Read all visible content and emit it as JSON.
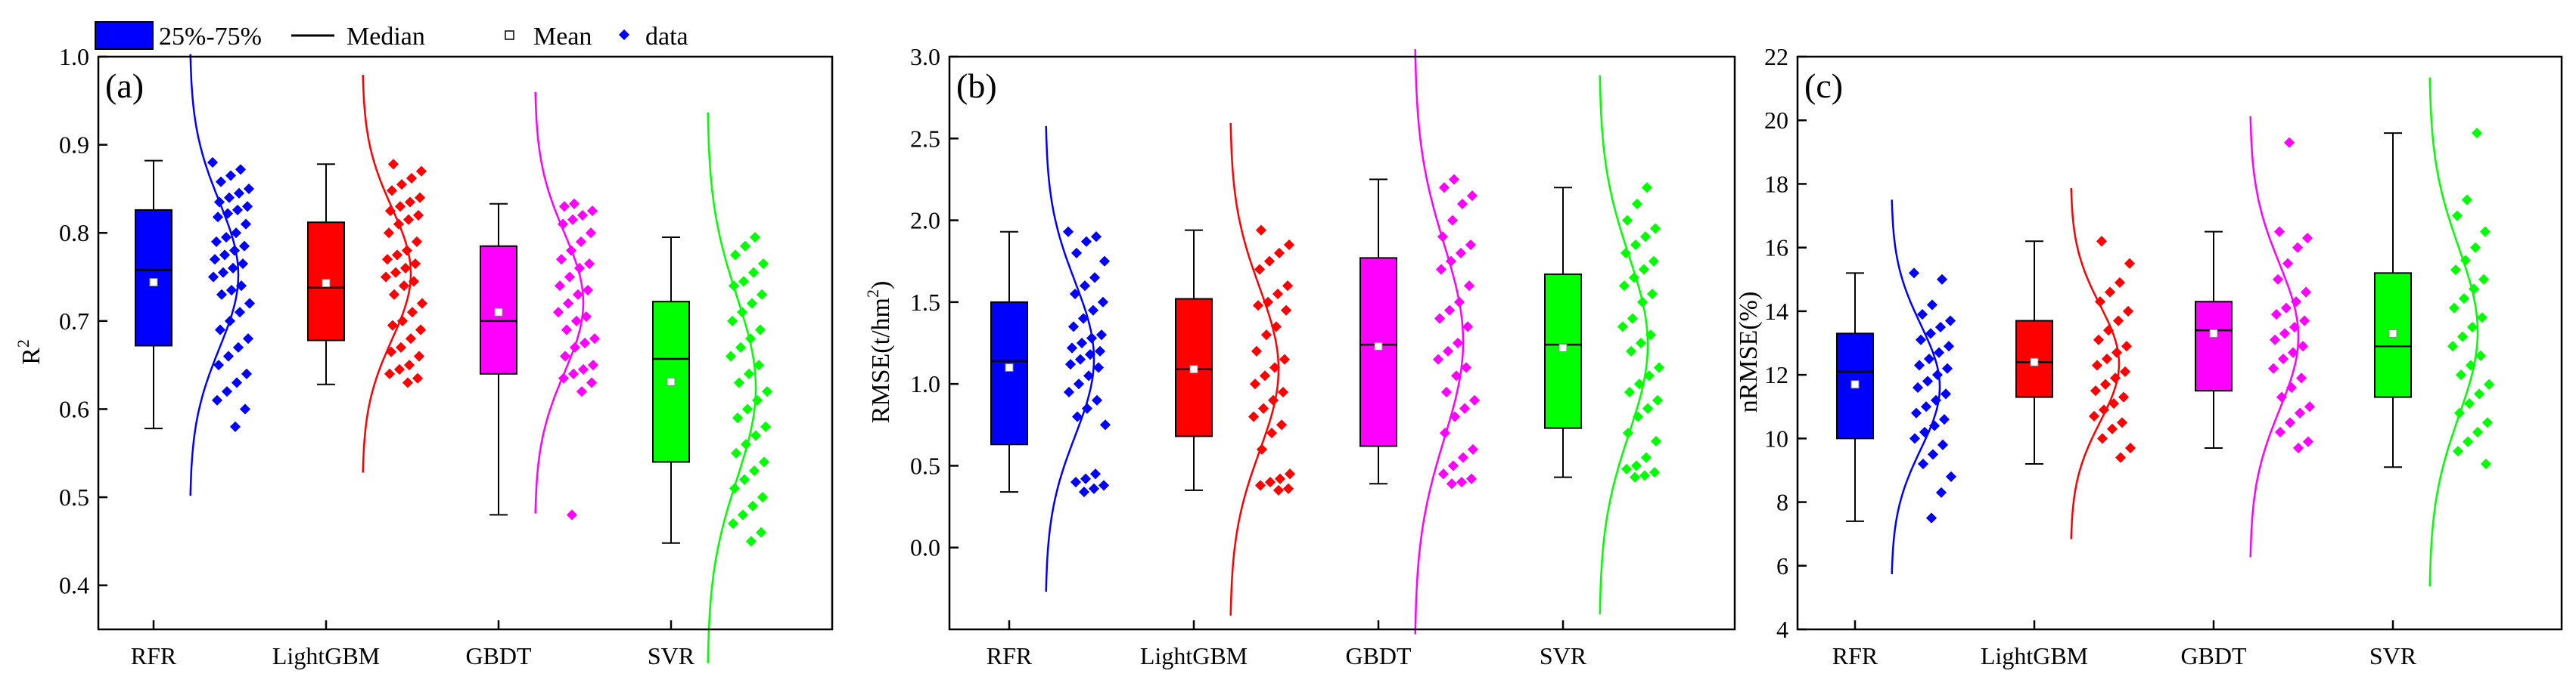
{
  "legend": {
    "box_label": "25%-75%",
    "median_label": "Median",
    "mean_label": "Mean",
    "data_label": "data"
  },
  "colors": {
    "RFR": "#0000ff",
    "LightGBM": "#ff0000",
    "GBDT": "#ff00ff",
    "SVR": "#00ff00",
    "frame": "#000000"
  },
  "chart_data": [
    {
      "type": "box",
      "panel_label": "(a)",
      "ylabel": "R",
      "ylabel_sup": "2",
      "ylim": [
        0.35,
        1.0
      ],
      "yticks": [
        "0.4",
        "0.5",
        "0.6",
        "0.7",
        "0.8",
        "0.9",
        "1.0"
      ],
      "ytick_values": [
        0.4,
        0.5,
        0.6,
        0.7,
        0.8,
        0.9,
        1.0
      ],
      "categories": [
        "RFR",
        "LightGBM",
        "GBDT",
        "SVR"
      ],
      "boxes": [
        {
          "name": "RFR",
          "whisker_low": 0.578,
          "q1": 0.672,
          "median": 0.758,
          "q3": 0.826,
          "whisker_high": 0.882,
          "mean": 0.744,
          "data": [
            0.88,
            0.872,
            0.865,
            0.858,
            0.85,
            0.845,
            0.84,
            0.835,
            0.83,
            0.826,
            0.822,
            0.818,
            0.81,
            0.8,
            0.795,
            0.79,
            0.785,
            0.78,
            0.775,
            0.77,
            0.765,
            0.76,
            0.755,
            0.75,
            0.74,
            0.735,
            0.73,
            0.72,
            0.71,
            0.7,
            0.69,
            0.68,
            0.67,
            0.66,
            0.65,
            0.64,
            0.63,
            0.62,
            0.61,
            0.6,
            0.58
          ]
        },
        {
          "name": "LightGBM",
          "whisker_low": 0.628,
          "q1": 0.678,
          "median": 0.738,
          "q3": 0.812,
          "whisker_high": 0.878,
          "mean": 0.743,
          "data": [
            0.878,
            0.87,
            0.862,
            0.855,
            0.848,
            0.84,
            0.835,
            0.83,
            0.825,
            0.82,
            0.815,
            0.81,
            0.8,
            0.79,
            0.78,
            0.775,
            0.77,
            0.765,
            0.76,
            0.755,
            0.75,
            0.745,
            0.74,
            0.73,
            0.72,
            0.71,
            0.7,
            0.695,
            0.69,
            0.68,
            0.67,
            0.665,
            0.66,
            0.65,
            0.645,
            0.64,
            0.635,
            0.63
          ]
        },
        {
          "name": "GBDT",
          "whisker_low": 0.48,
          "q1": 0.64,
          "median": 0.7,
          "q3": 0.785,
          "whisker_high": 0.833,
          "mean": 0.71,
          "data": [
            0.833,
            0.83,
            0.825,
            0.82,
            0.815,
            0.81,
            0.8,
            0.79,
            0.78,
            0.77,
            0.765,
            0.76,
            0.75,
            0.74,
            0.735,
            0.73,
            0.72,
            0.71,
            0.705,
            0.7,
            0.69,
            0.68,
            0.675,
            0.67,
            0.66,
            0.65,
            0.645,
            0.64,
            0.635,
            0.63,
            0.62,
            0.48
          ]
        },
        {
          "name": "SVR",
          "whisker_low": 0.448,
          "q1": 0.54,
          "median": 0.657,
          "q3": 0.722,
          "whisker_high": 0.795,
          "mean": 0.631,
          "data": [
            0.795,
            0.785,
            0.775,
            0.765,
            0.755,
            0.745,
            0.74,
            0.73,
            0.72,
            0.71,
            0.7,
            0.69,
            0.68,
            0.67,
            0.66,
            0.65,
            0.64,
            0.63,
            0.62,
            0.61,
            0.6,
            0.59,
            0.58,
            0.57,
            0.56,
            0.55,
            0.54,
            0.53,
            0.52,
            0.51,
            0.5,
            0.49,
            0.48,
            0.47,
            0.46,
            0.45
          ]
        }
      ]
    },
    {
      "type": "box",
      "panel_label": "(b)",
      "ylabel": "RMSE(t/hm",
      "ylabel_sup": "2",
      "ylabel_tail": ")",
      "ylim": [
        -0.5,
        3.0
      ],
      "yticks": [
        "0.0",
        "0.5",
        "1.0",
        "1.5",
        "2.0",
        "2.5",
        "3.0"
      ],
      "ytick_values": [
        0.0,
        0.5,
        1.0,
        1.5,
        2.0,
        2.5,
        3.0
      ],
      "categories": [
        "RFR",
        "LightGBM",
        "GBDT",
        "SVR"
      ],
      "boxes": [
        {
          "name": "RFR",
          "whisker_low": 0.34,
          "q1": 0.63,
          "median": 1.14,
          "q3": 1.5,
          "whisker_high": 1.93,
          "mean": 1.1,
          "data": [
            1.93,
            1.9,
            1.87,
            1.8,
            1.75,
            1.65,
            1.6,
            1.55,
            1.5,
            1.45,
            1.4,
            1.35,
            1.3,
            1.28,
            1.25,
            1.22,
            1.2,
            1.18,
            1.15,
            1.12,
            1.1,
            1.05,
            1.0,
            0.95,
            0.9,
            0.85,
            0.8,
            0.75,
            0.45,
            0.42,
            0.4,
            0.38,
            0.36,
            0.34
          ]
        },
        {
          "name": "LightGBM",
          "whisker_low": 0.35,
          "q1": 0.68,
          "median": 1.09,
          "q3": 1.52,
          "whisker_high": 1.94,
          "mean": 1.09,
          "data": [
            1.94,
            1.85,
            1.8,
            1.75,
            1.7,
            1.6,
            1.55,
            1.5,
            1.48,
            1.45,
            1.35,
            1.3,
            1.2,
            1.15,
            1.1,
            1.05,
            1.0,
            0.95,
            0.9,
            0.85,
            0.8,
            0.75,
            0.7,
            0.6,
            0.45,
            0.42,
            0.4,
            0.38,
            0.36,
            0.35
          ]
        },
        {
          "name": "GBDT",
          "whisker_low": 0.39,
          "q1": 0.62,
          "median": 1.24,
          "q3": 1.77,
          "whisker_high": 2.25,
          "mean": 1.23,
          "data": [
            2.25,
            2.2,
            2.15,
            2.1,
            2.0,
            1.9,
            1.85,
            1.8,
            1.75,
            1.7,
            1.6,
            1.5,
            1.45,
            1.4,
            1.35,
            1.25,
            1.2,
            1.15,
            1.1,
            1.05,
            0.95,
            0.9,
            0.85,
            0.8,
            0.7,
            0.6,
            0.55,
            0.5,
            0.45,
            0.42,
            0.4,
            0.39
          ]
        },
        {
          "name": "SVR",
          "whisker_low": 0.43,
          "q1": 0.73,
          "median": 1.24,
          "q3": 1.67,
          "whisker_high": 2.2,
          "mean": 1.22,
          "data": [
            2.2,
            2.1,
            2.0,
            1.95,
            1.9,
            1.85,
            1.8,
            1.75,
            1.7,
            1.65,
            1.6,
            1.55,
            1.5,
            1.4,
            1.35,
            1.3,
            1.25,
            1.2,
            1.1,
            1.05,
            1.0,
            0.95,
            0.9,
            0.85,
            0.8,
            0.7,
            0.65,
            0.55,
            0.5,
            0.48,
            0.46,
            0.44,
            0.43
          ]
        }
      ]
    },
    {
      "type": "box",
      "panel_label": "(c)",
      "ylabel": "nRMSE(%)",
      "ylim": [
        4,
        22
      ],
      "yticks": [
        "4",
        "6",
        "8",
        "10",
        "12",
        "14",
        "16",
        "18",
        "20",
        "22"
      ],
      "ytick_values": [
        4,
        6,
        8,
        10,
        12,
        14,
        16,
        18,
        20,
        22
      ],
      "categories": [
        "RFR",
        "LightGBM",
        "GBDT",
        "SVR"
      ],
      "boxes": [
        {
          "name": "RFR",
          "whisker_low": 7.4,
          "q1": 10.0,
          "median": 12.1,
          "q3": 13.3,
          "whisker_high": 15.2,
          "mean": 11.7,
          "data": [
            15.2,
            15.0,
            14.2,
            13.9,
            13.7,
            13.5,
            13.3,
            13.1,
            12.9,
            12.7,
            12.5,
            12.3,
            12.2,
            12.0,
            11.8,
            11.6,
            11.4,
            11.2,
            11.0,
            10.8,
            10.6,
            10.4,
            10.2,
            10.0,
            9.8,
            9.5,
            9.2,
            8.8,
            8.3,
            7.5
          ]
        },
        {
          "name": "LightGBM",
          "whisker_low": 9.2,
          "q1": 11.3,
          "median": 12.4,
          "q3": 13.7,
          "whisker_high": 16.2,
          "mean": 12.4,
          "data": [
            16.2,
            15.5,
            14.9,
            14.6,
            14.3,
            14.0,
            13.7,
            13.4,
            13.1,
            12.9,
            12.7,
            12.5,
            12.3,
            12.1,
            11.9,
            11.7,
            11.5,
            11.3,
            11.1,
            10.9,
            10.7,
            10.5,
            10.3,
            10.0,
            9.7,
            9.4
          ]
        },
        {
          "name": "GBDT",
          "whisker_low": 9.7,
          "q1": 11.5,
          "median": 13.4,
          "q3": 14.3,
          "whisker_high": 16.5,
          "mean": 13.3,
          "data": [
            19.3,
            16.5,
            16.3,
            16.0,
            15.5,
            15.0,
            14.6,
            14.3,
            14.1,
            13.9,
            13.7,
            13.5,
            13.3,
            13.1,
            12.9,
            12.7,
            12.5,
            12.2,
            11.9,
            11.6,
            11.3,
            11.0,
            10.8,
            10.5,
            10.2,
            9.9,
            9.7
          ]
        },
        {
          "name": "SVR",
          "whisker_low": 9.1,
          "q1": 11.3,
          "median": 12.9,
          "q3": 15.2,
          "whisker_high": 19.6,
          "mean": 13.3,
          "data": [
            19.6,
            17.5,
            17.0,
            16.5,
            16.0,
            15.6,
            15.3,
            15.0,
            14.7,
            14.4,
            14.1,
            13.8,
            13.5,
            13.2,
            12.9,
            12.6,
            12.3,
            12.0,
            11.7,
            11.4,
            11.1,
            10.8,
            10.5,
            10.2,
            9.9,
            9.6,
            9.2
          ]
        }
      ]
    }
  ]
}
